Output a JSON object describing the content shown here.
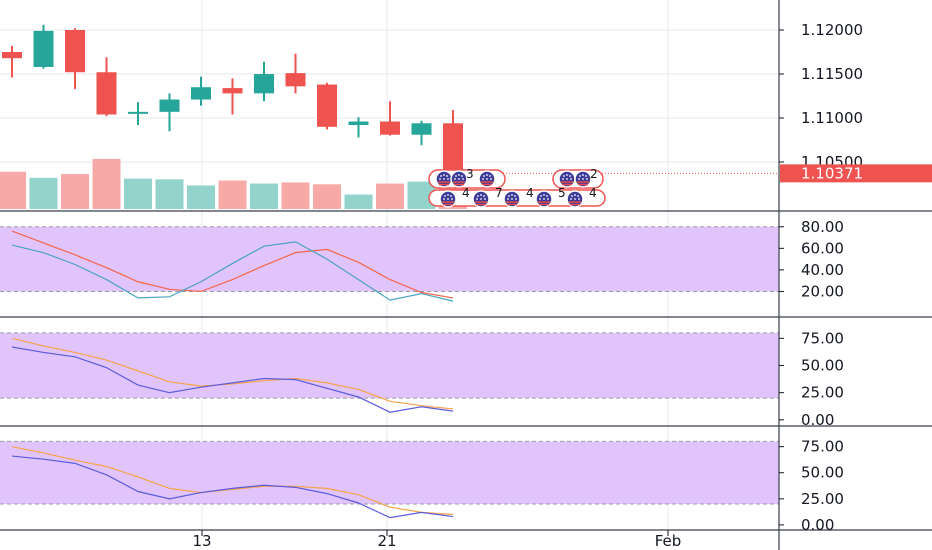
{
  "colors": {
    "up": "#26a69a",
    "down": "#ef5350",
    "vol_up": "#92d4cc",
    "vol_down": "#f7a9a7",
    "band_fill": "#e1c4fc",
    "line_red": "#f5664b",
    "line_teal": "#4aa3c4",
    "line_blue": "#5b5bdd",
    "line_orange": "#f6a34a",
    "grid": "#e6e8eb",
    "axis": "#131722",
    "price_tag": "#ef5350"
  },
  "price_axis": {
    "ticks": [
      "1.12000",
      "1.11500",
      "1.11000",
      "1.10500"
    ],
    "tick_values": [
      1.12,
      1.115,
      1.11,
      1.105
    ],
    "current": "1.10371",
    "current_value": 1.10371
  },
  "time_axis": {
    "labels": [
      "13",
      "21",
      "Feb"
    ]
  },
  "events": {
    "flags": [
      {
        "count": "3"
      },
      {
        "count": "2"
      }
    ],
    "numbers": [
      "4",
      "7",
      "4",
      "5",
      "4"
    ]
  },
  "chart_data": [
    {
      "type": "candlestick",
      "ylim": [
        1.1,
        1.1225
      ],
      "ohlc": [
        {
          "o": 1.1175,
          "h": 1.1182,
          "l": 1.1146,
          "c": 1.1168
        },
        {
          "o": 1.1158,
          "h": 1.1206,
          "l": 1.1156,
          "c": 1.1199
        },
        {
          "o": 1.12,
          "h": 1.1202,
          "l": 1.1133,
          "c": 1.1152
        },
        {
          "o": 1.1152,
          "h": 1.1169,
          "l": 1.1102,
          "c": 1.1104
        },
        {
          "o": 1.1106,
          "h": 1.1118,
          "l": 1.1092,
          "c": 1.1107
        },
        {
          "o": 1.1107,
          "h": 1.1128,
          "l": 1.1085,
          "c": 1.1121
        },
        {
          "o": 1.1121,
          "h": 1.1147,
          "l": 1.1114,
          "c": 1.1135
        },
        {
          "o": 1.1134,
          "h": 1.1145,
          "l": 1.1104,
          "c": 1.1128
        },
        {
          "o": 1.1128,
          "h": 1.1164,
          "l": 1.1119,
          "c": 1.115
        },
        {
          "o": 1.1151,
          "h": 1.1173,
          "l": 1.1128,
          "c": 1.1136
        },
        {
          "o": 1.1138,
          "h": 1.114,
          "l": 1.1087,
          "c": 1.109
        },
        {
          "o": 1.1092,
          "h": 1.1101,
          "l": 1.1078,
          "c": 1.1096
        },
        {
          "o": 1.1096,
          "h": 1.1119,
          "l": 1.108,
          "c": 1.1081
        },
        {
          "o": 1.1081,
          "h": 1.1097,
          "l": 1.1069,
          "c": 1.1094
        },
        {
          "o": 1.1094,
          "h": 1.1109,
          "l": 1.103,
          "c": 1.1037
        }
      ],
      "volume_ratio": [
        0.98,
        0.82,
        0.92,
        1.32,
        0.8,
        0.78,
        0.62,
        0.75,
        0.67,
        0.7,
        0.65,
        0.38,
        0.67,
        0.72,
        0.9
      ]
    },
    {
      "type": "line",
      "ylim": [
        0,
        90
      ],
      "ticks": [
        "80.00",
        "60.00",
        "40.00",
        "20.00"
      ],
      "tick_values": [
        80,
        60,
        40,
        20
      ],
      "band": [
        20,
        80
      ],
      "series": [
        {
          "color": "line_red",
          "values": [
            76,
            65,
            54,
            42,
            29,
            22,
            20,
            31,
            44,
            56,
            59,
            47,
            31,
            19,
            14
          ]
        },
        {
          "color": "line_teal",
          "values": [
            63,
            56,
            45,
            31,
            14,
            15,
            29,
            46,
            62,
            66,
            50,
            31,
            12,
            18,
            11
          ]
        }
      ]
    },
    {
      "type": "line",
      "ylim": [
        -2,
        90
      ],
      "ticks": [
        "75.00",
        "50.00",
        "25.00",
        "0.00"
      ],
      "tick_values": [
        75,
        50,
        25,
        0
      ],
      "band": [
        20,
        80
      ],
      "series": [
        {
          "color": "line_orange",
          "values": [
            75,
            68,
            62,
            55,
            45,
            35,
            31,
            33,
            36,
            38,
            34,
            28,
            17,
            13,
            10
          ]
        },
        {
          "color": "line_blue",
          "values": [
            67,
            62,
            58,
            48,
            32,
            25,
            30,
            34,
            38,
            37,
            29,
            21,
            7,
            12,
            8
          ]
        }
      ]
    },
    {
      "type": "line",
      "ylim": [
        -2,
        90
      ],
      "ticks": [
        "75.00",
        "50.00",
        "25.00",
        "0.00"
      ],
      "tick_values": [
        75,
        50,
        25,
        0
      ],
      "band": [
        20,
        80
      ],
      "series": [
        {
          "color": "line_orange",
          "values": [
            75,
            69,
            62,
            56,
            46,
            35,
            31,
            34,
            37,
            37,
            35,
            29,
            17,
            12,
            10
          ]
        },
        {
          "color": "line_blue",
          "values": [
            66,
            63,
            59,
            48,
            32,
            25,
            31,
            35,
            38,
            36,
            30,
            21,
            7,
            12,
            8
          ]
        }
      ]
    }
  ]
}
